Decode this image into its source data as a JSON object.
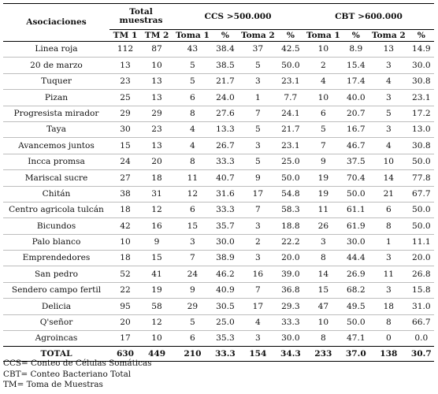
{
  "table": {
    "headers": {
      "asociaciones": "Asociaciones",
      "total_muestras": "Total muestras",
      "ccs_group": "CCS >500.000",
      "cbt_group": "CBT >600.000",
      "tm1": "TM 1",
      "tm2": "TM 2",
      "ccs_toma1": "Toma 1",
      "ccs_pct1": "%",
      "ccs_toma2": "Toma 2",
      "ccs_pct2": "%",
      "cbt_toma1": "Toma 1",
      "cbt_pct1": "%",
      "cbt_toma2": "Toma 2",
      "cbt_pct2": "%"
    },
    "rows": [
      [
        "Linea roja",
        "112",
        "87",
        "43",
        "38.4",
        "37",
        "42.5",
        "10",
        "8.9",
        "13",
        "14.9"
      ],
      [
        "20 de marzo",
        "13",
        "10",
        "5",
        "38.5",
        "5",
        "50.0",
        "2",
        "15.4",
        "3",
        "30.0"
      ],
      [
        "Tuquer",
        "23",
        "13",
        "5",
        "21.7",
        "3",
        "23.1",
        "4",
        "17.4",
        "4",
        "30.8"
      ],
      [
        "Pizan",
        "25",
        "13",
        "6",
        "24.0",
        "1",
        "7.7",
        "10",
        "40.0",
        "3",
        "23.1"
      ],
      [
        "Progresista mirador",
        "29",
        "29",
        "8",
        "27.6",
        "7",
        "24.1",
        "6",
        "20.7",
        "5",
        "17.2"
      ],
      [
        "Taya",
        "30",
        "23",
        "4",
        "13.3",
        "5",
        "21.7",
        "5",
        "16.7",
        "3",
        "13.0"
      ],
      [
        "Avancemos juntos",
        "15",
        "13",
        "4",
        "26.7",
        "3",
        "23.1",
        "7",
        "46.7",
        "4",
        "30.8"
      ],
      [
        "Incca promsa",
        "24",
        "20",
        "8",
        "33.3",
        "5",
        "25.0",
        "9",
        "37.5",
        "10",
        "50.0"
      ],
      [
        "Mariscal sucre",
        "27",
        "18",
        "11",
        "40.7",
        "9",
        "50.0",
        "19",
        "70.4",
        "14",
        "77.8"
      ],
      [
        "Chitán",
        "38",
        "31",
        "12",
        "31.6",
        "17",
        "54.8",
        "19",
        "50.0",
        "21",
        "67.7"
      ],
      [
        "Centro agricola tulcán",
        "18",
        "12",
        "6",
        "33.3",
        "7",
        "58.3",
        "11",
        "61.1",
        "6",
        "50.0"
      ],
      [
        "Bicundos",
        "42",
        "16",
        "15",
        "35.7",
        "3",
        "18.8",
        "26",
        "61.9",
        "8",
        "50.0"
      ],
      [
        "Palo blanco",
        "10",
        "9",
        "3",
        "30.0",
        "2",
        "22.2",
        "3",
        "30.0",
        "1",
        "11.1"
      ],
      [
        "Emprendedores",
        "18",
        "15",
        "7",
        "38.9",
        "3",
        "20.0",
        "8",
        "44.4",
        "3",
        "20.0"
      ],
      [
        "San pedro",
        "52",
        "41",
        "24",
        "46.2",
        "16",
        "39.0",
        "14",
        "26.9",
        "11",
        "26.8"
      ],
      [
        "Sendero campo fertil",
        "22",
        "19",
        "9",
        "40.9",
        "7",
        "36.8",
        "15",
        "68.2",
        "3",
        "15.8"
      ],
      [
        "Delicia",
        "95",
        "58",
        "29",
        "30.5",
        "17",
        "29.3",
        "47",
        "49.5",
        "18",
        "31.0"
      ],
      [
        "Q'señor",
        "20",
        "12",
        "5",
        "25.0",
        "4",
        "33.3",
        "10",
        "50.0",
        "8",
        "66.7"
      ],
      [
        "Agroincas",
        "17",
        "10",
        "6",
        "35.3",
        "3",
        "30.0",
        "8",
        "47.1",
        "0",
        "0.0"
      ]
    ],
    "total": [
      "TOTAL",
      "630",
      "449",
      "210",
      "33.3",
      "154",
      "34.3",
      "233",
      "37.0",
      "138",
      "30.7"
    ]
  },
  "notes": [
    "CCS= Conteo de Células Somáticas",
    "CBT= Conteo Bacteriano Total",
    "TM= Toma de Muestras"
  ]
}
